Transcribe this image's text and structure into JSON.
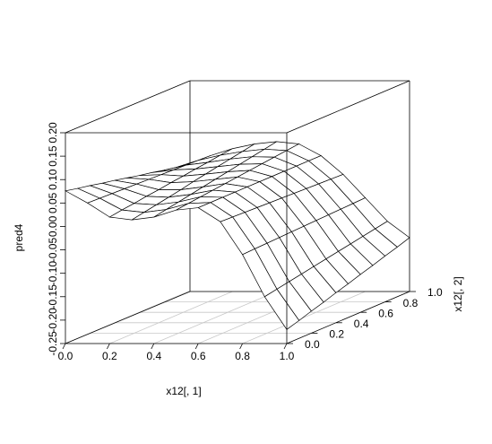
{
  "chart_data": {
    "type": "surface",
    "x_label": "x12[, 1]",
    "y_label": "x12[, 2]",
    "z_label": "pred4",
    "x": [
      0,
      0.1,
      0.2,
      0.3,
      0.4,
      0.5,
      0.6,
      0.7,
      0.8,
      0.9,
      1
    ],
    "y": [
      0,
      0.1,
      0.2,
      0.3,
      0.4,
      0.5,
      0.6,
      0.7,
      0.8,
      0.9,
      1
    ],
    "z": [
      [
        0.076,
        0.05,
        0.02,
        0.014,
        0.02,
        0.035,
        0.04,
        0.01,
        -0.06,
        -0.15,
        -0.22
      ],
      [
        0.07,
        0.049,
        0.024,
        0.019,
        0.025,
        0.038,
        0.04,
        0.009,
        -0.059,
        -0.145,
        -0.212
      ],
      [
        0.065,
        0.048,
        0.027,
        0.024,
        0.03,
        0.041,
        0.04,
        0.008,
        -0.058,
        -0.14,
        -0.203
      ],
      [
        0.059,
        0.047,
        0.031,
        0.029,
        0.035,
        0.044,
        0.04,
        0.007,
        -0.057,
        -0.135,
        -0.195
      ],
      [
        0.054,
        0.046,
        0.034,
        0.034,
        0.04,
        0.047,
        0.04,
        0.006,
        -0.056,
        -0.13,
        -0.186
      ],
      [
        0.048,
        0.045,
        0.038,
        0.04,
        0.045,
        0.05,
        0.04,
        0.005,
        -0.055,
        -0.125,
        -0.178
      ],
      [
        0.042,
        0.044,
        0.041,
        0.045,
        0.05,
        0.053,
        0.04,
        0.004,
        -0.054,
        -0.12,
        -0.169
      ],
      [
        0.037,
        0.043,
        0.045,
        0.05,
        0.055,
        0.056,
        0.04,
        0.003,
        -0.053,
        -0.115,
        -0.161
      ],
      [
        0.031,
        0.042,
        0.048,
        0.055,
        0.06,
        0.059,
        0.04,
        0.002,
        -0.052,
        -0.11,
        -0.152
      ],
      [
        0.026,
        0.041,
        0.052,
        0.06,
        0.065,
        0.062,
        0.04,
        0.001,
        -0.051,
        -0.105,
        -0.144
      ],
      [
        0.02,
        0.04,
        0.055,
        0.065,
        0.07,
        0.065,
        0.04,
        0,
        -0.05,
        -0.1,
        -0.135
      ]
    ],
    "xlim": [
      0,
      1
    ],
    "ylim": [
      0,
      1
    ],
    "zlim": [
      -0.25,
      0.2
    ],
    "xticks": [
      {
        "value": 0,
        "label": "0.0"
      },
      0.2,
      0.4,
      0.6,
      0.8,
      {
        "value": 1,
        "label": "1.0"
      }
    ],
    "yticks": [
      {
        "value": 0,
        "label": "0.0"
      },
      0.2,
      0.4,
      0.6,
      0.8,
      {
        "value": 1,
        "label": "1.0"
      }
    ],
    "zticks": [
      -0.25,
      {
        "value": -0.2,
        "label": "-0.20"
      },
      -0.15,
      {
        "value": -0.1,
        "label": "-0.10"
      },
      -0.05,
      {
        "value": 0,
        "label": "0.00"
      },
      0.05,
      {
        "value": 0.1,
        "label": "0.10"
      },
      0.15,
      {
        "value": 0.2,
        "label": "0.20"
      }
    ],
    "color": "#000000",
    "floor_grid": true
  }
}
